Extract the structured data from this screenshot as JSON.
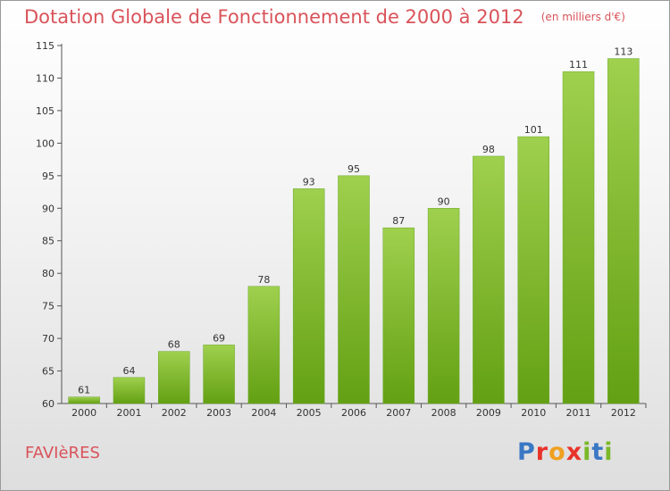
{
  "header": {
    "title": "Dotation Globale de Fonctionnement de 2000 à 2012",
    "subtitle": "(en milliers d'€)"
  },
  "footer": {
    "commune": "FAVIèRES",
    "logo_text": "Proxiti"
  },
  "colors": {
    "title": "#d9535a",
    "bar_light": "#9fd04e",
    "bar_dark": "#63a013",
    "logo_letters": [
      "#3a78c4",
      "#e8332a",
      "#f0a020",
      "#e8332a",
      "#7ab828",
      "#3a78c4",
      "#7ab828"
    ]
  },
  "chart_data": {
    "type": "bar",
    "title": "Dotation Globale de Fonctionnement de 2000 à 2012",
    "subtitle": "(en milliers d'€)",
    "categories": [
      "2000",
      "2001",
      "2002",
      "2003",
      "2004",
      "2005",
      "2006",
      "2007",
      "2008",
      "2009",
      "2010",
      "2011",
      "2012"
    ],
    "values": [
      61,
      64,
      68,
      69,
      78,
      93,
      95,
      87,
      90,
      98,
      101,
      111,
      113
    ],
    "ylim": [
      60,
      115
    ],
    "yticks": [
      60,
      65,
      70,
      75,
      80,
      85,
      90,
      95,
      100,
      105,
      110,
      115
    ],
    "xlabel": "",
    "ylabel": "",
    "grid": false,
    "legend": "none"
  }
}
